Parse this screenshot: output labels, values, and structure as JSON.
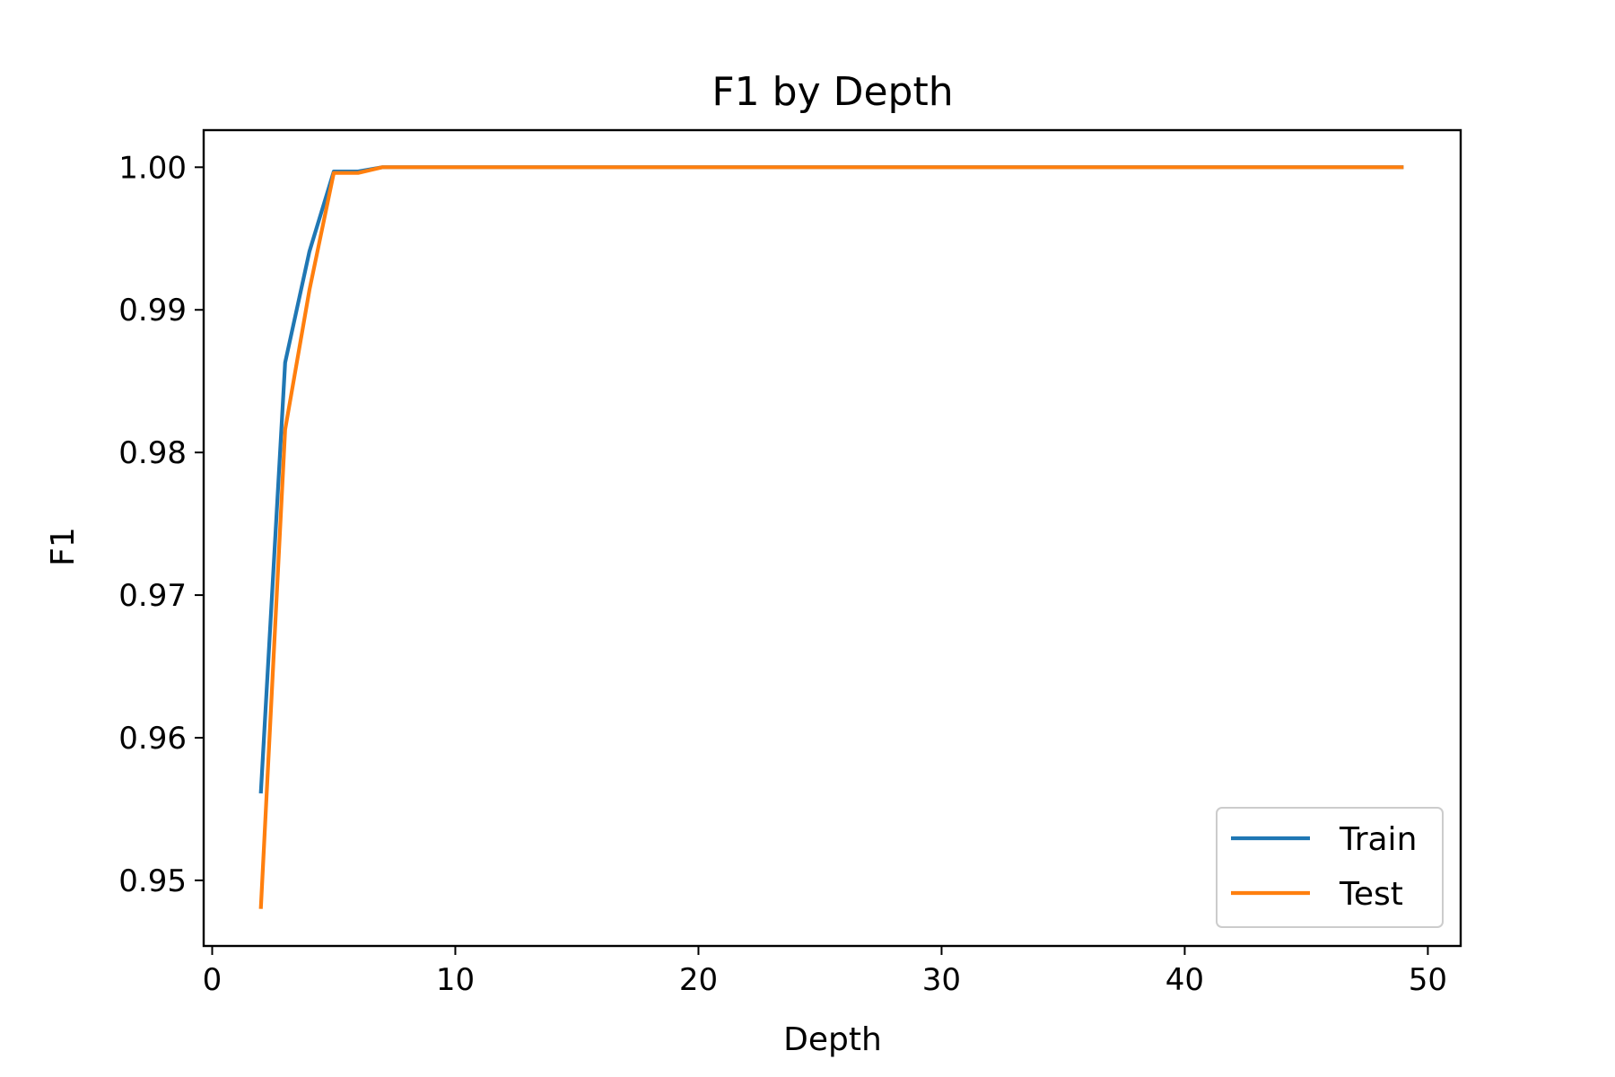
{
  "chart_data": {
    "type": "line",
    "title": "F1 by Depth",
    "xlabel": "Depth",
    "ylabel": "F1",
    "xlim": [
      -0.35,
      51.35
    ],
    "ylim": [
      0.9454,
      1.0026
    ],
    "xticks": [
      0,
      10,
      20,
      30,
      40,
      50
    ],
    "xtick_labels": [
      "0",
      "10",
      "20",
      "30",
      "40",
      "50"
    ],
    "yticks": [
      0.95,
      0.96,
      0.97,
      0.98,
      0.99,
      1.0
    ],
    "ytick_labels": [
      "0.95",
      "0.96",
      "0.97",
      "0.98",
      "0.99",
      "1.00"
    ],
    "grid": false,
    "legend_position": "lower-right",
    "series": [
      {
        "name": "Train",
        "color": "#1f77b4",
        "x": [
          2,
          3,
          4,
          5,
          6,
          7,
          8,
          9,
          10,
          11,
          12,
          13,
          14,
          15,
          16,
          17,
          18,
          19,
          20,
          21,
          22,
          23,
          24,
          25,
          26,
          27,
          28,
          29,
          30,
          31,
          32,
          33,
          34,
          35,
          36,
          37,
          38,
          39,
          40,
          41,
          42,
          43,
          44,
          45,
          46,
          47,
          48,
          49
        ],
        "y": [
          0.9561,
          0.9863,
          0.9941,
          0.9997,
          0.9997,
          1.0,
          1.0,
          1.0,
          1.0,
          1.0,
          1.0,
          1.0,
          1.0,
          1.0,
          1.0,
          1.0,
          1.0,
          1.0,
          1.0,
          1.0,
          1.0,
          1.0,
          1.0,
          1.0,
          1.0,
          1.0,
          1.0,
          1.0,
          1.0,
          1.0,
          1.0,
          1.0,
          1.0,
          1.0,
          1.0,
          1.0,
          1.0,
          1.0,
          1.0,
          1.0,
          1.0,
          1.0,
          1.0,
          1.0,
          1.0,
          1.0,
          1.0,
          1.0
        ]
      },
      {
        "name": "Test",
        "color": "#ff7f0e",
        "x": [
          2,
          3,
          4,
          5,
          6,
          7,
          8,
          9,
          10,
          11,
          12,
          13,
          14,
          15,
          16,
          17,
          18,
          19,
          20,
          21,
          22,
          23,
          24,
          25,
          26,
          27,
          28,
          29,
          30,
          31,
          32,
          33,
          34,
          35,
          36,
          37,
          38,
          39,
          40,
          41,
          42,
          43,
          44,
          45,
          46,
          47,
          48,
          49
        ],
        "y": [
          0.948,
          0.9816,
          0.9914,
          0.9996,
          0.9996,
          1.0,
          1.0,
          1.0,
          1.0,
          1.0,
          1.0,
          1.0,
          1.0,
          1.0,
          1.0,
          1.0,
          1.0,
          1.0,
          1.0,
          1.0,
          1.0,
          1.0,
          1.0,
          1.0,
          1.0,
          1.0,
          1.0,
          1.0,
          1.0,
          1.0,
          1.0,
          1.0,
          1.0,
          1.0,
          1.0,
          1.0,
          1.0,
          1.0,
          1.0,
          1.0,
          1.0,
          1.0,
          1.0,
          1.0,
          1.0,
          1.0,
          1.0,
          1.0
        ]
      }
    ]
  }
}
